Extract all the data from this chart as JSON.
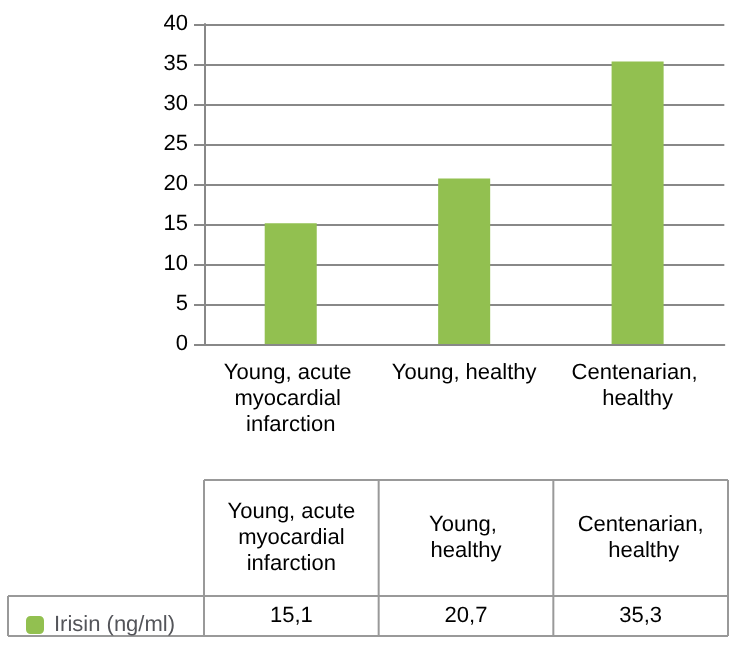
{
  "chart_data": {
    "type": "bar",
    "categories": [
      "Young, acute myocardial infarction",
      "Young, healthy",
      "Centenarian, healthy"
    ],
    "series": [
      {
        "name": "Irisin (ng/ml)",
        "color": "#92c050",
        "values": [
          15.1,
          20.7,
          35.3
        ],
        "value_labels": [
          "15,1",
          "20,7",
          "35,3"
        ]
      }
    ],
    "ylim": [
      0,
      40
    ],
    "yticks": [
      0,
      5,
      10,
      15,
      20,
      25,
      30,
      35,
      40
    ],
    "grid": "y",
    "legend": "bottom left"
  }
}
